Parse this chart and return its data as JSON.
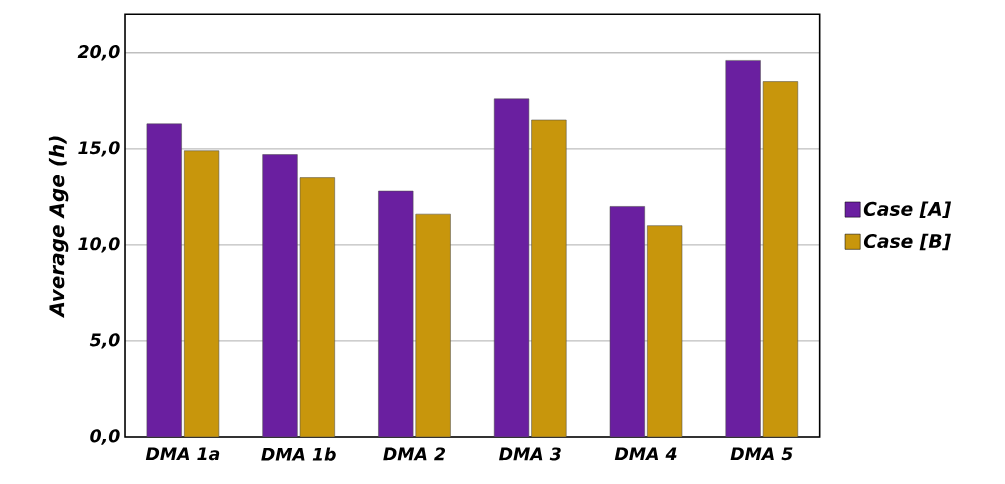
{
  "chart_data": {
    "type": "bar",
    "ylabel": "Average Age (h)",
    "categories": [
      "DMA 1a",
      "DMA 1b",
      "DMA 2",
      "DMA 3",
      "DMA 4",
      "DMA 5"
    ],
    "series": [
      {
        "name": "Case [A]",
        "color": "#6a1fa0",
        "values": [
          16.3,
          14.7,
          12.8,
          17.6,
          12.0,
          19.6
        ]
      },
      {
        "name": "Case [B]",
        "color": "#c8960c",
        "values": [
          14.9,
          13.5,
          11.6,
          16.5,
          11.0,
          18.5
        ]
      }
    ],
    "ylim": [
      0,
      22
    ],
    "yticks": [
      {
        "value": 0,
        "label": "0,0"
      },
      {
        "value": 5,
        "label": "5,0"
      },
      {
        "value": 10,
        "label": "10,0"
      },
      {
        "value": 15,
        "label": "15,0"
      },
      {
        "value": 20,
        "label": "20,0"
      }
    ],
    "grid": "y",
    "legend": "right"
  }
}
